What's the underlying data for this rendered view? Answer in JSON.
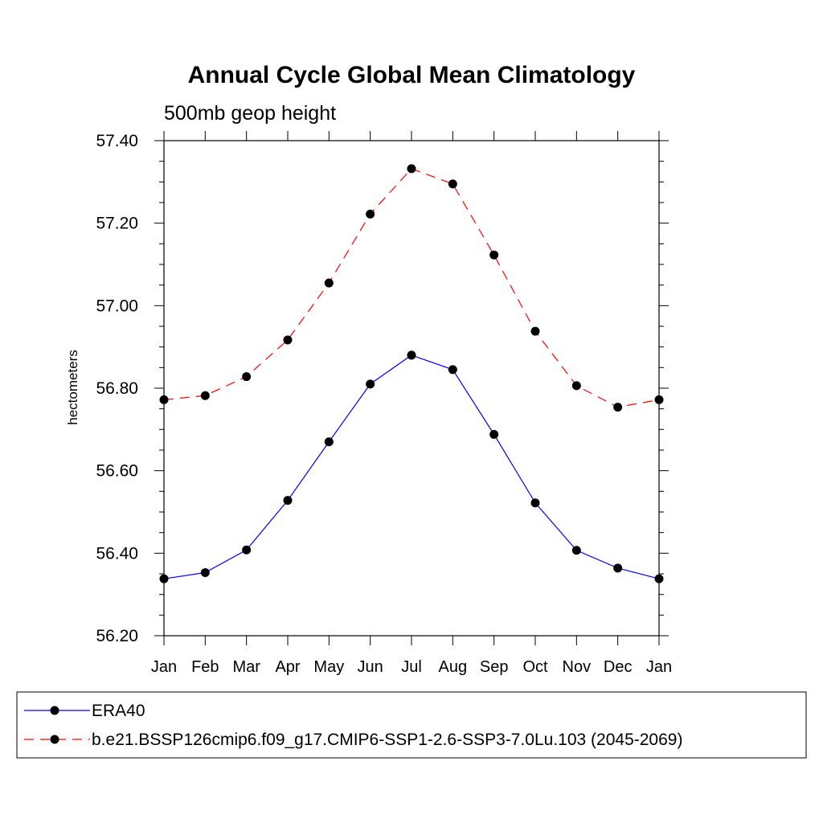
{
  "chart_data": {
    "type": "line",
    "title": "Annual Cycle Global Mean Climatology",
    "subtitle": "500mb geop height",
    "xlabel": "",
    "ylabel": "hectometers",
    "categories": [
      "Jan",
      "Feb",
      "Mar",
      "Apr",
      "May",
      "Jun",
      "Jul",
      "Aug",
      "Sep",
      "Oct",
      "Nov",
      "Dec",
      "Jan"
    ],
    "ylim": [
      56.2,
      57.4
    ],
    "yticks": [
      "56.20",
      "56.40",
      "56.60",
      "56.80",
      "57.00",
      "57.20",
      "57.40"
    ],
    "series": [
      {
        "name": "ERA40",
        "color": "#0000ff",
        "dash": "solid",
        "marker": "filled-circle",
        "values": [
          56.338,
          56.353,
          56.408,
          56.528,
          56.67,
          56.81,
          56.88,
          56.845,
          56.688,
          56.522,
          56.407,
          56.364,
          56.338
        ]
      },
      {
        "name": "b.e21.BSSP126cmip6.f09_g17.CMIP6-SSP1-2.6-SSP3-7.0Lu.103 (2045-2069)",
        "color": "#ff0000",
        "dash": "dashed",
        "marker": "filled-circle",
        "values": [
          56.772,
          56.782,
          56.828,
          56.917,
          57.055,
          57.222,
          57.332,
          57.295,
          57.123,
          56.938,
          56.806,
          56.754,
          56.772
        ]
      }
    ],
    "grid": false,
    "legend_position": "bottom"
  }
}
